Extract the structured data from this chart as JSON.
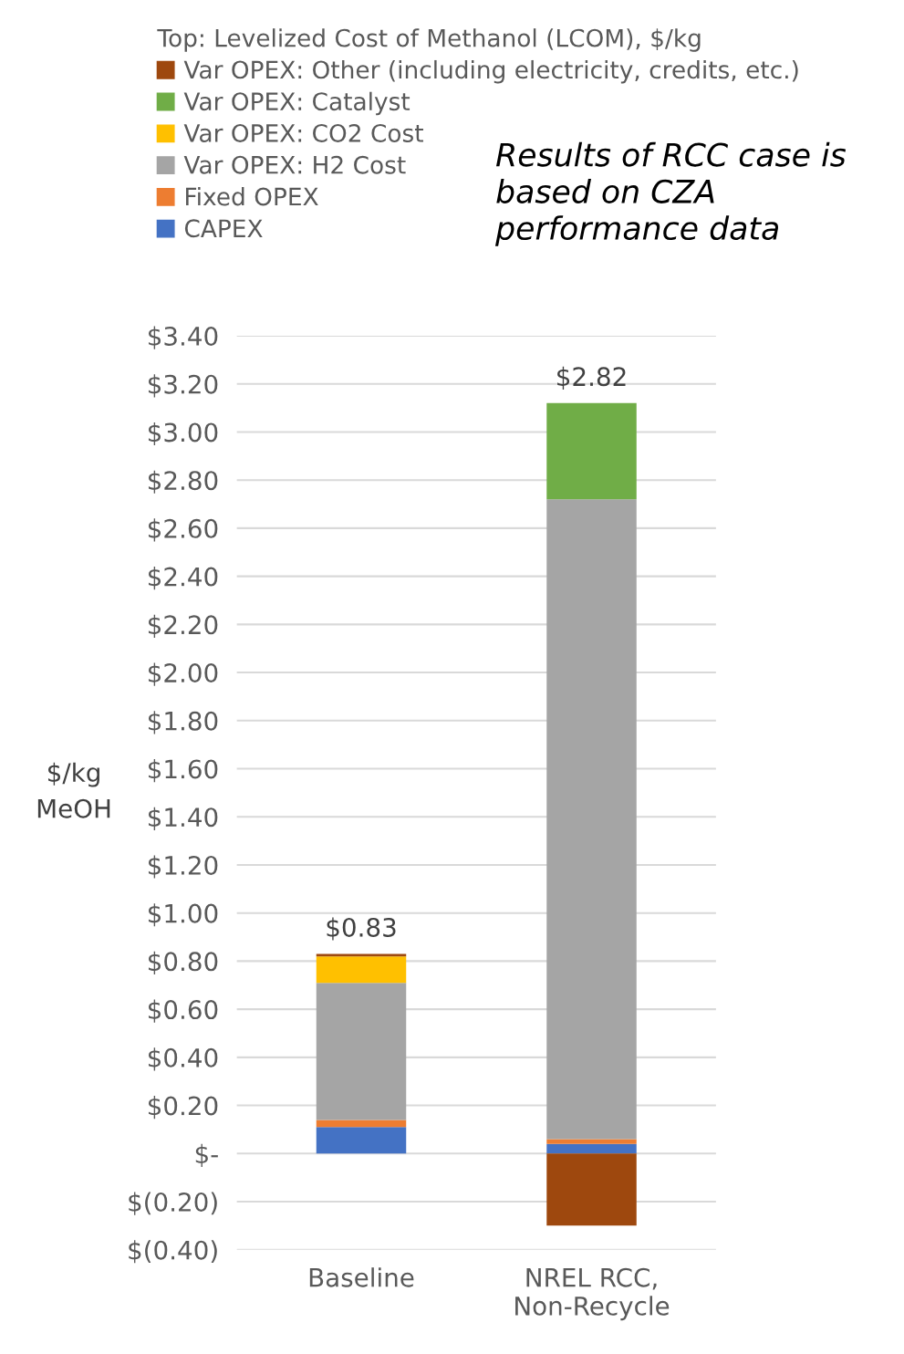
{
  "chart_data": {
    "type": "bar",
    "stacked": true,
    "legend_title": "Top: Levelized Cost of Methanol (LCOM), $/kg",
    "ylabel": "$/kg MeOH",
    "categories": [
      "Baseline",
      "NREL RCC, Non-Recycle"
    ],
    "series": [
      {
        "name": "CAPEX",
        "color": "#4472c4",
        "values": [
          0.11,
          0.04
        ]
      },
      {
        "name": "Fixed OPEX",
        "color": "#ed7d31",
        "values": [
          0.03,
          0.02
        ]
      },
      {
        "name": "Var OPEX: H2 Cost",
        "color": "#a5a5a5",
        "values": [
          0.57,
          2.66
        ]
      },
      {
        "name": "Var OPEX: CO2 Cost",
        "color": "#ffc000",
        "values": [
          0.11,
          0
        ]
      },
      {
        "name": "Var OPEX: Catalyst",
        "color": "#70ad47",
        "values": [
          0,
          0.4
        ]
      },
      {
        "name": "Var OPEX: Other (including electricity, credits, etc.)",
        "color": "#9e480e",
        "values": [
          0.01,
          -0.3
        ]
      }
    ],
    "totals": [
      "$0.83",
      "$2.82"
    ],
    "ylim": [
      -0.4,
      3.4
    ],
    "yticks": [
      {
        "value": -0.4,
        "label": "$(0.40)"
      },
      {
        "value": -0.2,
        "label": "$(0.20)"
      },
      {
        "value": 0,
        "label": "$-"
      },
      {
        "value": 0.2,
        "label": "$0.20"
      },
      {
        "value": 0.4,
        "label": "$0.40"
      },
      {
        "value": 0.6,
        "label": "$0.60"
      },
      {
        "value": 0.8,
        "label": "$0.80"
      },
      {
        "value": 1.0,
        "label": "$1.00"
      },
      {
        "value": 1.2,
        "label": "$1.20"
      },
      {
        "value": 1.4,
        "label": "$1.40"
      },
      {
        "value": 1.6,
        "label": "$1.60"
      },
      {
        "value": 1.8,
        "label": "$1.80"
      },
      {
        "value": 2.0,
        "label": "$2.00"
      },
      {
        "value": 2.2,
        "label": "$2.20"
      },
      {
        "value": 2.4,
        "label": "$2.40"
      },
      {
        "value": 2.6,
        "label": "$2.60"
      },
      {
        "value": 2.8,
        "label": "$2.80"
      },
      {
        "value": 3.0,
        "label": "$3.00"
      },
      {
        "value": 3.2,
        "label": "$3.20"
      },
      {
        "value": 3.4,
        "label": "$3.40"
      }
    ],
    "grid": "y",
    "legend": "top left",
    "annotations": [
      "Results of RCC case is based on CZA performance data"
    ]
  }
}
